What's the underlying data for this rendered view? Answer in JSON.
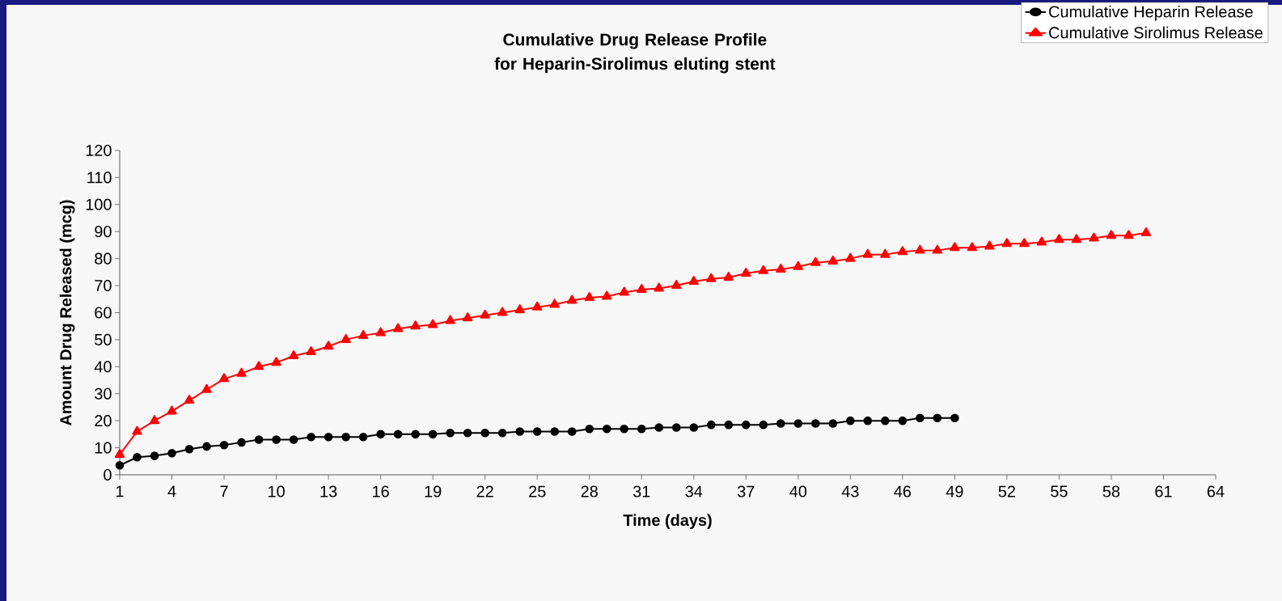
{
  "chart_data": {
    "type": "line",
    "title": "Cumulative Drug Release Profile for Heparin-Sirolimus eluting stent",
    "xlabel": "Time (days)",
    "ylabel": "Amount Drug Released (mcg)",
    "xlim": [
      1,
      64
    ],
    "xticks": [
      1,
      4,
      7,
      10,
      13,
      16,
      19,
      22,
      25,
      28,
      31,
      34,
      37,
      40,
      43,
      46,
      49,
      52,
      55,
      58,
      61,
      64
    ],
    "ylim": [
      0,
      120
    ],
    "yticks": [
      0,
      10,
      20,
      30,
      40,
      50,
      60,
      70,
      80,
      90,
      100,
      110,
      120
    ],
    "grid": false,
    "legend": "top right",
    "line_style": "solid",
    "series": [
      {
        "name": "Cumulative Heparin Release",
        "color": "#000000",
        "marker": "circle",
        "x": [
          1,
          2,
          3,
          4,
          5,
          6,
          7,
          8,
          9,
          10,
          11,
          12,
          13,
          14,
          15,
          16,
          17,
          18,
          19,
          20,
          21,
          22,
          23,
          24,
          25,
          26,
          27,
          28,
          29,
          30,
          31,
          32,
          33,
          34,
          35,
          36,
          37,
          38,
          39,
          40,
          41,
          42,
          43,
          44,
          45,
          46,
          47,
          48,
          49
        ],
        "values": [
          3.5,
          6.5,
          7,
          8,
          9.5,
          10.5,
          11,
          12,
          13,
          13,
          13,
          14,
          14,
          14,
          14,
          15,
          15,
          15,
          15,
          15.5,
          15.5,
          15.5,
          15.5,
          16,
          16,
          16,
          16,
          17,
          17,
          17,
          17,
          17.5,
          17.5,
          17.5,
          18.5,
          18.5,
          18.5,
          18.5,
          19,
          19,
          19,
          19,
          20,
          20,
          20,
          20,
          21,
          21,
          21
        ]
      },
      {
        "name": "Cumulative Sirolimus Release",
        "color": "#ff0000",
        "marker": "triangle",
        "x": [
          1,
          2,
          3,
          4,
          5,
          6,
          7,
          8,
          9,
          10,
          11,
          12,
          13,
          14,
          15,
          16,
          17,
          18,
          19,
          20,
          21,
          22,
          23,
          24,
          25,
          26,
          27,
          28,
          29,
          30,
          31,
          32,
          33,
          34,
          35,
          36,
          37,
          38,
          39,
          40,
          41,
          42,
          43,
          44,
          45,
          46,
          47,
          48,
          49,
          50,
          51,
          52,
          53,
          54,
          55,
          56,
          57,
          58,
          59,
          60
        ],
        "values": [
          7.5,
          16,
          20,
          23.5,
          27.5,
          31.5,
          35.5,
          37.5,
          40,
          41.5,
          44,
          45.5,
          47.5,
          50,
          51.5,
          52.5,
          54,
          55,
          55.5,
          57,
          58,
          59,
          60,
          61,
          62,
          63,
          64.5,
          65.5,
          66,
          67.5,
          68.5,
          69,
          70,
          71.5,
          72.5,
          73,
          74.5,
          75.5,
          76,
          77,
          78.5,
          79,
          80,
          81.5,
          81.5,
          82.5,
          83,
          83,
          84,
          84,
          84.5,
          85.5,
          85.5,
          86,
          87,
          87,
          87.5,
          88.5,
          88.5,
          89.5
        ]
      }
    ]
  }
}
